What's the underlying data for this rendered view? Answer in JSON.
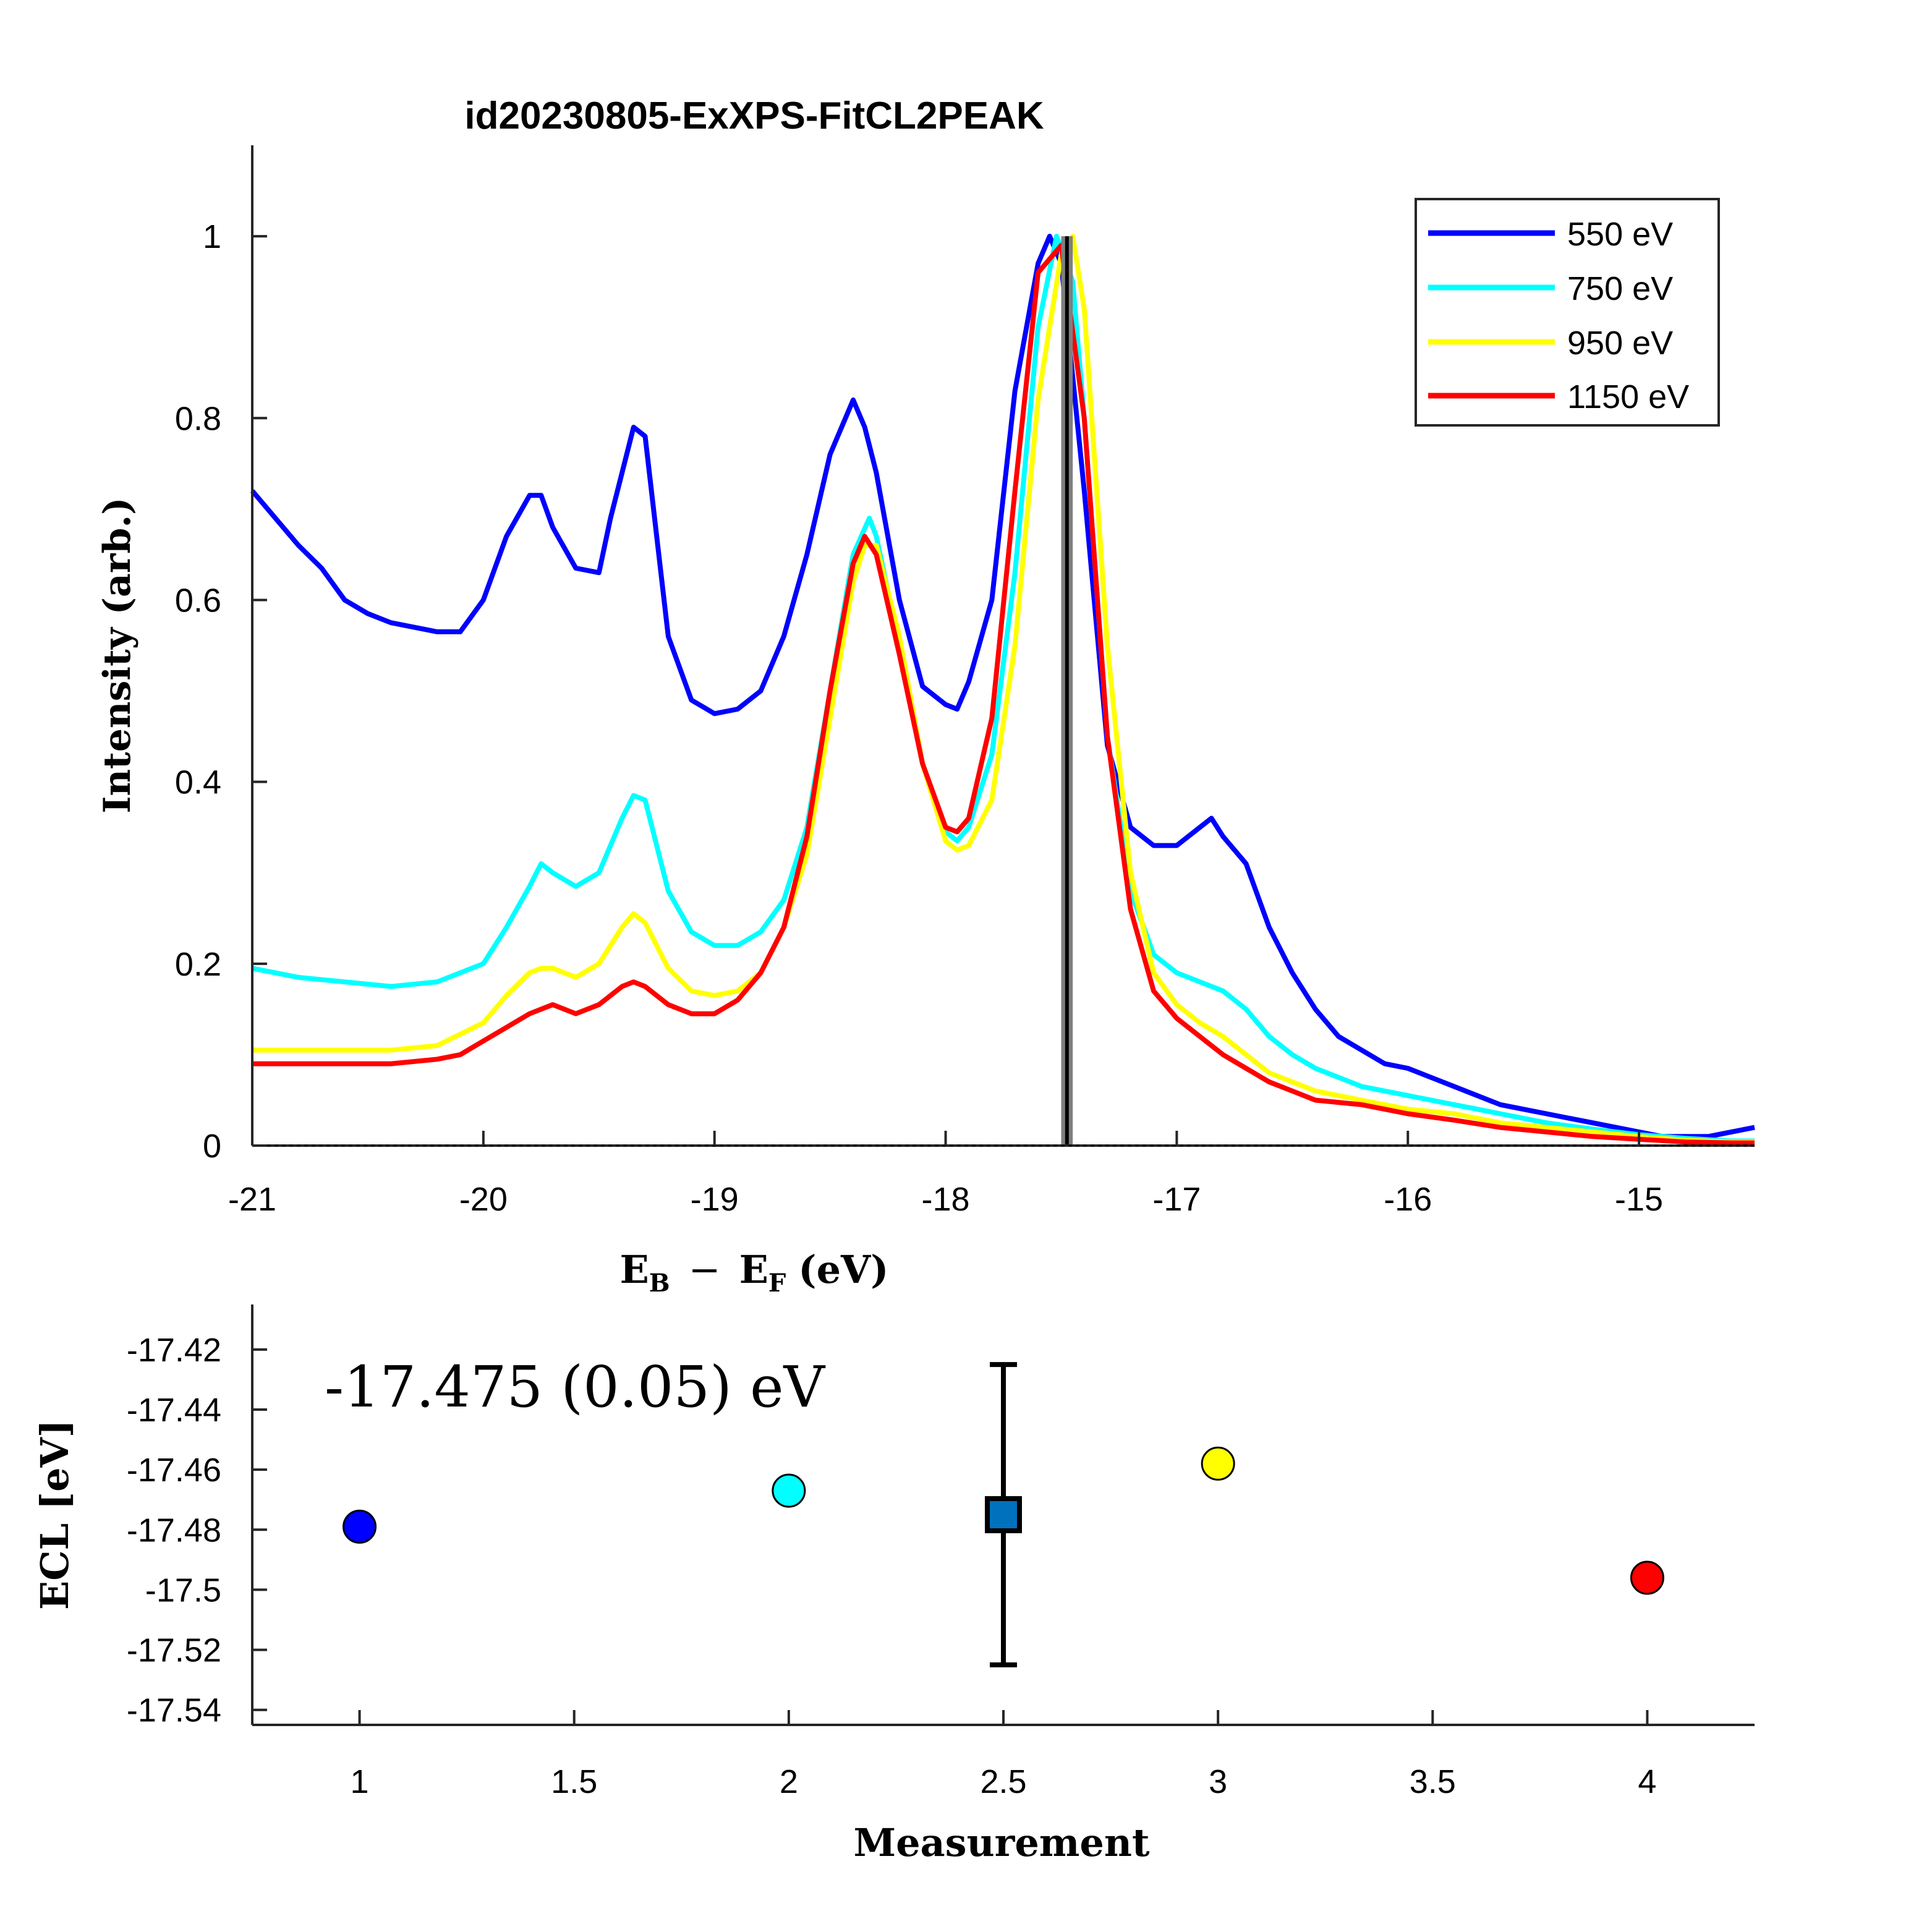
{
  "chart_data": [
    {
      "type": "line",
      "title": "id20230805-ExXPS-FitCL2PEAK",
      "xlabel": {
        "E": "E",
        "sub1": "B",
        "minus": "−",
        "sub2": "F",
        "unit": "(eV)"
      },
      "ylabel": "Intensity (arb.)",
      "xlim": [
        -21,
        -14.5
      ],
      "ylim": [
        0,
        1.1
      ],
      "xticks": [
        -21,
        -20,
        -19,
        -18,
        -17,
        -16,
        -15
      ],
      "xtick_labels": [
        "-21",
        "-20",
        "-19",
        "-18",
        "-17",
        "-16",
        "-15"
      ],
      "yticks": [
        0,
        0.2,
        0.4,
        0.6,
        0.8,
        1
      ],
      "ytick_labels": [
        "0",
        "0.2",
        "0.4",
        "0.6",
        "0.8",
        "1"
      ],
      "grid": false,
      "legend_position": "top-right",
      "series": [
        {
          "name": "550 eV",
          "color": "#0000ff",
          "x": [
            -21,
            -20.9,
            -20.8,
            -20.7,
            -20.6,
            -20.5,
            -20.4,
            -20.3,
            -20.2,
            -20.1,
            -20.0,
            -19.9,
            -19.8,
            -19.75,
            -19.7,
            -19.6,
            -19.5,
            -19.45,
            -19.4,
            -19.35,
            -19.3,
            -19.2,
            -19.1,
            -19.0,
            -18.9,
            -18.8,
            -18.7,
            -18.6,
            -18.5,
            -18.4,
            -18.35,
            -18.3,
            -18.2,
            -18.1,
            -18.0,
            -17.95,
            -17.9,
            -17.8,
            -17.7,
            -17.6,
            -17.55,
            -17.5,
            -17.4,
            -17.3,
            -17.2,
            -17.1,
            -17.0,
            -16.9,
            -16.85,
            -16.8,
            -16.7,
            -16.6,
            -16.5,
            -16.4,
            -16.3,
            -16.2,
            -16.1,
            -16.0,
            -15.9,
            -15.8,
            -15.7,
            -15.6,
            -15.5,
            -15.4,
            -15.3,
            -15.2,
            -15.1,
            -15.0,
            -14.9,
            -14.8,
            -14.7,
            -14.6,
            -14.5
          ],
          "y": [
            0.72,
            0.69,
            0.66,
            0.635,
            0.6,
            0.585,
            0.575,
            0.57,
            0.565,
            0.565,
            0.6,
            0.67,
            0.715,
            0.715,
            0.68,
            0.635,
            0.63,
            0.69,
            0.74,
            0.79,
            0.78,
            0.56,
            0.49,
            0.475,
            0.48,
            0.5,
            0.56,
            0.65,
            0.76,
            0.82,
            0.79,
            0.74,
            0.6,
            0.505,
            0.485,
            0.48,
            0.51,
            0.6,
            0.83,
            0.97,
            1.0,
            0.97,
            0.72,
            0.44,
            0.35,
            0.33,
            0.33,
            0.35,
            0.36,
            0.34,
            0.31,
            0.24,
            0.19,
            0.15,
            0.12,
            0.105,
            0.09,
            0.085,
            0.075,
            0.065,
            0.055,
            0.045,
            0.04,
            0.035,
            0.03,
            0.025,
            0.02,
            0.015,
            0.01,
            0.01,
            0.01,
            0.015,
            0.02
          ]
        },
        {
          "name": "750 eV",
          "color": "#00ffff",
          "x": [
            -21,
            -20.8,
            -20.6,
            -20.4,
            -20.2,
            -20.0,
            -19.9,
            -19.8,
            -19.75,
            -19.7,
            -19.6,
            -19.5,
            -19.4,
            -19.35,
            -19.3,
            -19.2,
            -19.1,
            -19.0,
            -18.9,
            -18.8,
            -18.7,
            -18.6,
            -18.5,
            -18.4,
            -18.33,
            -18.3,
            -18.2,
            -18.1,
            -18.0,
            -17.95,
            -17.9,
            -17.8,
            -17.7,
            -17.6,
            -17.52,
            -17.45,
            -17.4,
            -17.3,
            -17.2,
            -17.1,
            -17.0,
            -16.9,
            -16.8,
            -16.7,
            -16.6,
            -16.5,
            -16.4,
            -16.3,
            -16.2,
            -16.0,
            -15.8,
            -15.6,
            -15.4,
            -15.2,
            -15.0,
            -14.8,
            -14.6,
            -14.5
          ],
          "y": [
            0.195,
            0.185,
            0.18,
            0.175,
            0.18,
            0.2,
            0.24,
            0.285,
            0.31,
            0.3,
            0.285,
            0.3,
            0.36,
            0.385,
            0.38,
            0.28,
            0.235,
            0.22,
            0.22,
            0.235,
            0.27,
            0.35,
            0.5,
            0.65,
            0.69,
            0.67,
            0.55,
            0.42,
            0.345,
            0.335,
            0.35,
            0.43,
            0.63,
            0.9,
            1.0,
            0.95,
            0.8,
            0.45,
            0.28,
            0.21,
            0.19,
            0.18,
            0.17,
            0.15,
            0.12,
            0.1,
            0.085,
            0.075,
            0.065,
            0.055,
            0.045,
            0.035,
            0.025,
            0.018,
            0.012,
            0.008,
            0.005,
            0.005
          ]
        },
        {
          "name": "950 eV",
          "color": "#ffff00",
          "x": [
            -21,
            -20.8,
            -20.6,
            -20.4,
            -20.2,
            -20.0,
            -19.9,
            -19.8,
            -19.75,
            -19.7,
            -19.6,
            -19.5,
            -19.4,
            -19.35,
            -19.3,
            -19.2,
            -19.1,
            -19.0,
            -18.9,
            -18.8,
            -18.7,
            -18.6,
            -18.5,
            -18.4,
            -18.35,
            -18.3,
            -18.2,
            -18.1,
            -18.0,
            -17.95,
            -17.9,
            -17.8,
            -17.7,
            -17.6,
            -17.5,
            -17.45,
            -17.4,
            -17.3,
            -17.2,
            -17.1,
            -17.0,
            -16.9,
            -16.8,
            -16.7,
            -16.6,
            -16.5,
            -16.4,
            -16.2,
            -16.0,
            -15.8,
            -15.6,
            -15.4,
            -15.2,
            -15.0,
            -14.8,
            -14.6,
            -14.5
          ],
          "y": [
            0.105,
            0.105,
            0.105,
            0.105,
            0.11,
            0.135,
            0.165,
            0.19,
            0.195,
            0.195,
            0.185,
            0.2,
            0.24,
            0.255,
            0.245,
            0.195,
            0.17,
            0.165,
            0.17,
            0.19,
            0.24,
            0.32,
            0.47,
            0.62,
            0.66,
            0.66,
            0.56,
            0.42,
            0.335,
            0.325,
            0.33,
            0.38,
            0.55,
            0.82,
            0.98,
            1.0,
            0.92,
            0.55,
            0.3,
            0.19,
            0.155,
            0.135,
            0.12,
            0.1,
            0.08,
            0.07,
            0.06,
            0.05,
            0.04,
            0.035,
            0.025,
            0.02,
            0.015,
            0.01,
            0.006,
            0.004,
            0.004
          ]
        },
        {
          "name": "1150 eV",
          "color": "#ff0000",
          "x": [
            -21,
            -20.8,
            -20.6,
            -20.4,
            -20.2,
            -20.1,
            -20.0,
            -19.9,
            -19.8,
            -19.7,
            -19.6,
            -19.5,
            -19.4,
            -19.35,
            -19.3,
            -19.2,
            -19.1,
            -19.0,
            -18.9,
            -18.8,
            -18.7,
            -18.6,
            -18.5,
            -18.4,
            -18.35,
            -18.3,
            -18.2,
            -18.1,
            -18.0,
            -17.95,
            -17.9,
            -17.8,
            -17.7,
            -17.6,
            -17.5,
            -17.4,
            -17.3,
            -17.2,
            -17.1,
            -17.0,
            -16.9,
            -16.8,
            -16.7,
            -16.6,
            -16.5,
            -16.4,
            -16.2,
            -16.0,
            -15.8,
            -15.6,
            -15.4,
            -15.2,
            -15.0,
            -14.8,
            -14.6,
            -14.5
          ],
          "y": [
            0.09,
            0.09,
            0.09,
            0.09,
            0.095,
            0.1,
            0.115,
            0.13,
            0.145,
            0.155,
            0.145,
            0.155,
            0.175,
            0.18,
            0.175,
            0.155,
            0.145,
            0.145,
            0.16,
            0.19,
            0.24,
            0.34,
            0.5,
            0.64,
            0.67,
            0.65,
            0.54,
            0.42,
            0.35,
            0.345,
            0.36,
            0.47,
            0.72,
            0.96,
            0.99,
            0.8,
            0.45,
            0.26,
            0.17,
            0.14,
            0.12,
            0.1,
            0.085,
            0.07,
            0.06,
            0.05,
            0.045,
            0.035,
            0.028,
            0.02,
            0.015,
            0.01,
            0.007,
            0.004,
            0.003,
            0.003
          ]
        }
      ],
      "marker_line": {
        "x": -17.475,
        "band": [
          -17.5,
          -17.45
        ]
      }
    },
    {
      "type": "scatter",
      "xlabel": "Measurement",
      "ylabel": "ECL [eV]",
      "xlim": [
        0.75,
        4.25
      ],
      "ylim": [
        -17.545,
        -17.405
      ],
      "xticks": [
        1,
        1.5,
        2,
        2.5,
        3,
        3.5,
        4
      ],
      "xtick_labels": [
        "1",
        "1.5",
        "2",
        "2.5",
        "3",
        "3.5",
        "4"
      ],
      "yticks": [
        -17.42,
        -17.44,
        -17.46,
        -17.48,
        -17.5,
        -17.52,
        -17.54
      ],
      "ytick_labels": [
        "-17.42",
        "-17.44",
        "-17.46",
        "-17.48",
        "-17.5",
        "-17.52",
        "-17.54"
      ],
      "annotation": "-17.475 (0.05) eV",
      "points": [
        {
          "x": 1,
          "y": -17.479,
          "color": "#0000ff"
        },
        {
          "x": 2,
          "y": -17.467,
          "color": "#00ffff"
        },
        {
          "x": 3,
          "y": -17.458,
          "color": "#ffff00"
        },
        {
          "x": 4,
          "y": -17.496,
          "color": "#ff0000"
        }
      ],
      "mean": {
        "x": 2.5,
        "y": -17.475,
        "err": 0.05,
        "color": "#0072bd"
      }
    }
  ]
}
